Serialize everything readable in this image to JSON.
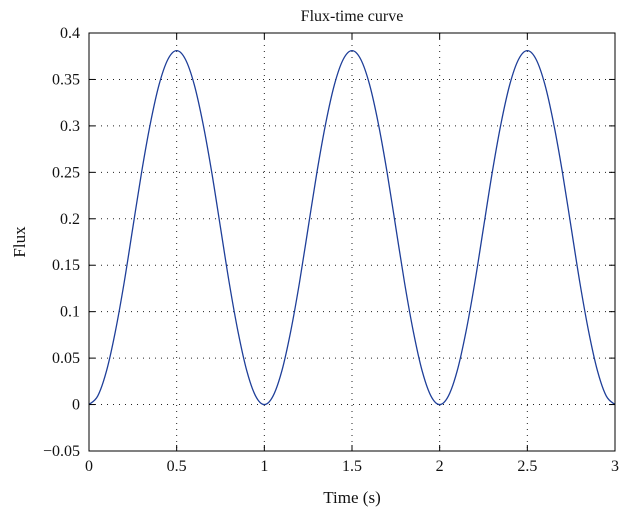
{
  "chart_data": {
    "type": "line",
    "title": "Flux-time curve",
    "xlabel": "Time (s)",
    "ylabel": "Flux",
    "xlim": [
      0,
      3
    ],
    "ylim": [
      -0.05,
      0.4
    ],
    "x_ticks": [
      0,
      0.5,
      1,
      1.5,
      2,
      2.5,
      3
    ],
    "x_tick_labels": [
      "0",
      "0.5",
      "1",
      "1.5",
      "2",
      "2.5",
      "3"
    ],
    "y_ticks": [
      -0.05,
      0,
      0.05,
      0.1,
      0.15,
      0.2,
      0.25,
      0.3,
      0.35,
      0.4
    ],
    "y_tick_labels": [
      "−0.05",
      "0",
      "0.05",
      "0.1",
      "0.15",
      "0.2",
      "0.25",
      "0.3",
      "0.35",
      "0.4"
    ],
    "grid": true,
    "legend": "none",
    "series": [
      {
        "color": "#1f3f99",
        "x": [
          0,
          0.05,
          0.1,
          0.15,
          0.2,
          0.25,
          0.3,
          0.35,
          0.4,
          0.45,
          0.5,
          0.55,
          0.6,
          0.65,
          0.7,
          0.75,
          0.8,
          0.85,
          0.9,
          0.95,
          1,
          1.05,
          1.1,
          1.15,
          1.2,
          1.25,
          1.3,
          1.35,
          1.4,
          1.45,
          1.5,
          1.55,
          1.6,
          1.65,
          1.7,
          1.75,
          1.8,
          1.85,
          1.9,
          1.95,
          2,
          2.05,
          2.1,
          2.15,
          2.2,
          2.25,
          2.3,
          2.35,
          2.4,
          2.45,
          2.5,
          2.55,
          2.6,
          2.65,
          2.7,
          2.75,
          2.8,
          2.85,
          2.9,
          2.95,
          3
        ],
        "y": [
          0,
          0.0093,
          0.0363,
          0.0784,
          0.1308,
          0.1905,
          0.2501,
          0.3026,
          0.3446,
          0.3716,
          0.381,
          0.3716,
          0.3446,
          0.3026,
          0.2501,
          0.1905,
          0.1308,
          0.0784,
          0.0363,
          0.0093,
          0,
          0.0093,
          0.0363,
          0.0784,
          0.1308,
          0.1905,
          0.2501,
          0.3026,
          0.3446,
          0.3716,
          0.381,
          0.3716,
          0.3446,
          0.3026,
          0.2501,
          0.1905,
          0.1308,
          0.0784,
          0.0363,
          0.0093,
          0,
          0.0093,
          0.0363,
          0.0784,
          0.1308,
          0.1905,
          0.2501,
          0.3026,
          0.3446,
          0.3716,
          0.381,
          0.3716,
          0.3446,
          0.3026,
          0.2501,
          0.1905,
          0.1308,
          0.0784,
          0.0363,
          0.0093,
          0
        ]
      }
    ]
  }
}
